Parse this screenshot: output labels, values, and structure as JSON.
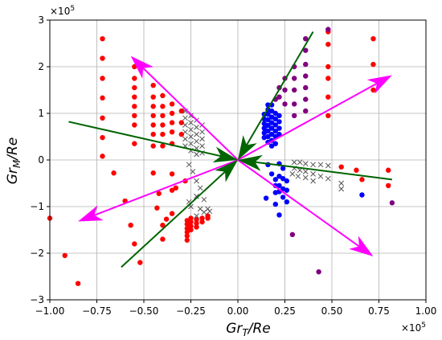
{
  "chart_data": {
    "type": "scatter",
    "title": "",
    "xlabel": "Gr_T/Re",
    "ylabel": "Gr_M/Re",
    "x_multiplier": "×10^5",
    "y_multiplier": "×10^5",
    "xlim": [
      -1.0,
      1.0
    ],
    "ylim": [
      -3,
      3
    ],
    "xticks": [
      -1.0,
      -0.75,
      -0.5,
      -0.25,
      0.0,
      0.25,
      0.5,
      0.75,
      1.0
    ],
    "xtick_labels": [
      "−1.00",
      "−0.75",
      "−0.50",
      "−0.25",
      "0.00",
      "0.25",
      "0.50",
      "0.75",
      "1.00"
    ],
    "yticks": [
      -3,
      -2,
      -1,
      0,
      1,
      2,
      3
    ],
    "ytick_labels": [
      "−3",
      "−2",
      "−1",
      "0",
      "1",
      "2",
      "3"
    ],
    "grid": true,
    "colors": {
      "red": "#ff0000",
      "blue": "#0000ff",
      "purple": "#800080",
      "cross": "#555555",
      "magenta_arrow": "#ff00ff",
      "green_arrow": "#006400"
    },
    "series": [
      {
        "color": "red",
        "marker": "circle",
        "points": [
          [
            -1.0,
            -1.25
          ],
          [
            -0.92,
            -2.05
          ],
          [
            -0.85,
            -2.65
          ],
          [
            -0.72,
            2.6
          ],
          [
            -0.72,
            2.18
          ],
          [
            -0.72,
            1.75
          ],
          [
            -0.72,
            1.33
          ],
          [
            -0.72,
            0.9
          ],
          [
            -0.72,
            0.48
          ],
          [
            -0.72,
            0.08
          ],
          [
            -0.66,
            -0.28
          ],
          [
            -0.6,
            -0.88
          ],
          [
            -0.57,
            -1.4
          ],
          [
            -0.55,
            -1.8
          ],
          [
            -0.52,
            -2.2
          ],
          [
            -0.55,
            2.0
          ],
          [
            -0.55,
            1.75
          ],
          [
            -0.55,
            1.55
          ],
          [
            -0.55,
            1.35
          ],
          [
            -0.55,
            1.15
          ],
          [
            -0.55,
            0.95
          ],
          [
            -0.55,
            0.75
          ],
          [
            -0.55,
            0.35
          ],
          [
            -0.45,
            1.6
          ],
          [
            -0.45,
            1.35
          ],
          [
            -0.45,
            1.15
          ],
          [
            -0.45,
            0.95
          ],
          [
            -0.45,
            0.75
          ],
          [
            -0.45,
            0.55
          ],
          [
            -0.45,
            0.3
          ],
          [
            -0.45,
            -0.28
          ],
          [
            -0.4,
            1.38
          ],
          [
            -0.4,
            1.15
          ],
          [
            -0.4,
            0.95
          ],
          [
            -0.4,
            0.75
          ],
          [
            -0.4,
            0.55
          ],
          [
            -0.4,
            0.3
          ],
          [
            -0.4,
            -1.4
          ],
          [
            -0.4,
            -1.7
          ],
          [
            -0.35,
            1.2
          ],
          [
            -0.35,
            1.0
          ],
          [
            -0.35,
            0.8
          ],
          [
            -0.35,
            0.6
          ],
          [
            -0.35,
            0.35
          ],
          [
            -0.35,
            -0.3
          ],
          [
            -0.35,
            -0.65
          ],
          [
            -0.35,
            -1.15
          ],
          [
            -0.3,
            1.05
          ],
          [
            -0.3,
            0.8
          ],
          [
            -0.3,
            0.55
          ],
          [
            -0.42,
            -0.72
          ],
          [
            -0.33,
            -0.6
          ],
          [
            -0.28,
            -0.45
          ],
          [
            -0.43,
            -1.03
          ],
          [
            -0.38,
            -1.27
          ],
          [
            -0.27,
            -1.3
          ],
          [
            -0.27,
            -1.38
          ],
          [
            -0.27,
            -1.47
          ],
          [
            -0.27,
            -1.55
          ],
          [
            -0.27,
            -1.63
          ],
          [
            -0.27,
            -1.72
          ],
          [
            -0.25,
            -1.25
          ],
          [
            -0.25,
            -1.33
          ],
          [
            -0.25,
            -1.42
          ],
          [
            -0.25,
            -1.5
          ],
          [
            -0.22,
            -1.28
          ],
          [
            -0.22,
            -1.36
          ],
          [
            -0.22,
            -1.44
          ],
          [
            -0.19,
            -1.25
          ],
          [
            -0.19,
            -1.33
          ],
          [
            -0.16,
            -1.25
          ],
          [
            -0.16,
            -1.2
          ],
          [
            0.48,
            2.75
          ],
          [
            0.48,
            2.48
          ],
          [
            0.48,
            2.0
          ],
          [
            0.48,
            1.75
          ],
          [
            0.48,
            1.35
          ],
          [
            0.48,
            0.95
          ],
          [
            0.72,
            2.6
          ],
          [
            0.72,
            2.05
          ],
          [
            0.72,
            1.5
          ],
          [
            0.55,
            -0.15
          ],
          [
            0.63,
            -0.22
          ],
          [
            0.66,
            -0.42
          ],
          [
            0.8,
            -0.22
          ],
          [
            0.8,
            -0.55
          ]
        ]
      },
      {
        "color": "blue",
        "marker": "circle",
        "points": [
          [
            0.14,
            0.48
          ],
          [
            0.14,
            0.58
          ],
          [
            0.14,
            0.68
          ],
          [
            0.14,
            0.78
          ],
          [
            0.14,
            0.88
          ],
          [
            0.14,
            0.98
          ],
          [
            0.16,
            0.38
          ],
          [
            0.16,
            0.5
          ],
          [
            0.16,
            0.62
          ],
          [
            0.16,
            0.74
          ],
          [
            0.16,
            0.86
          ],
          [
            0.16,
            0.98
          ],
          [
            0.16,
            1.08
          ],
          [
            0.16,
            1.18
          ],
          [
            0.18,
            0.3
          ],
          [
            0.18,
            0.42
          ],
          [
            0.18,
            0.55
          ],
          [
            0.18,
            0.68
          ],
          [
            0.18,
            0.8
          ],
          [
            0.18,
            0.92
          ],
          [
            0.18,
            1.05
          ],
          [
            0.18,
            1.18
          ],
          [
            0.2,
            0.35
          ],
          [
            0.2,
            0.5
          ],
          [
            0.2,
            0.62
          ],
          [
            0.2,
            0.75
          ],
          [
            0.2,
            0.88
          ],
          [
            0.2,
            1.0
          ],
          [
            0.22,
            0.55
          ],
          [
            0.22,
            0.68
          ],
          [
            0.22,
            0.82
          ],
          [
            0.22,
            0.95
          ],
          [
            0.16,
            -0.1
          ],
          [
            0.18,
            -0.3
          ],
          [
            0.2,
            -0.42
          ],
          [
            0.2,
            -0.55
          ],
          [
            0.2,
            -0.7
          ],
          [
            0.22,
            -0.08
          ],
          [
            0.22,
            -0.35
          ],
          [
            0.22,
            -0.55
          ],
          [
            0.22,
            -0.68
          ],
          [
            0.24,
            -0.18
          ],
          [
            0.24,
            -0.4
          ],
          [
            0.24,
            -0.62
          ],
          [
            0.24,
            -0.8
          ],
          [
            0.26,
            -0.45
          ],
          [
            0.26,
            -0.65
          ],
          [
            0.26,
            -0.9
          ],
          [
            0.15,
            -0.82
          ],
          [
            0.2,
            -0.95
          ],
          [
            0.22,
            -1.18
          ],
          [
            0.66,
            -0.75
          ]
        ]
      },
      {
        "color": "purple",
        "marker": "circle",
        "points": [
          [
            0.48,
            2.8
          ],
          [
            0.36,
            2.6
          ],
          [
            0.36,
            2.35
          ],
          [
            0.36,
            2.05
          ],
          [
            0.36,
            1.8
          ],
          [
            0.36,
            1.55
          ],
          [
            0.36,
            1.3
          ],
          [
            0.36,
            1.05
          ],
          [
            0.3,
            2.0
          ],
          [
            0.3,
            1.75
          ],
          [
            0.3,
            1.5
          ],
          [
            0.3,
            1.2
          ],
          [
            0.3,
            0.95
          ],
          [
            0.25,
            1.75
          ],
          [
            0.25,
            1.5
          ],
          [
            0.25,
            1.2
          ],
          [
            0.22,
            1.55
          ],
          [
            0.22,
            1.35
          ],
          [
            0.2,
            1.3
          ],
          [
            0.29,
            -1.6
          ],
          [
            0.43,
            -2.4
          ],
          [
            0.82,
            -0.92
          ]
        ]
      },
      {
        "color": "cross",
        "marker": "x",
        "points": [
          [
            -0.28,
            1.05
          ],
          [
            -0.28,
            0.9
          ],
          [
            -0.28,
            0.75
          ],
          [
            -0.28,
            0.6
          ],
          [
            -0.28,
            0.45
          ],
          [
            -0.28,
            0.3
          ],
          [
            -0.25,
            0.95
          ],
          [
            -0.25,
            0.8
          ],
          [
            -0.25,
            0.65
          ],
          [
            -0.25,
            0.5
          ],
          [
            -0.25,
            0.35
          ],
          [
            -0.25,
            0.2
          ],
          [
            -0.22,
            0.85
          ],
          [
            -0.22,
            0.7
          ],
          [
            -0.22,
            0.55
          ],
          [
            -0.22,
            0.4
          ],
          [
            -0.22,
            0.25
          ],
          [
            -0.22,
            0.12
          ],
          [
            -0.19,
            0.75
          ],
          [
            -0.19,
            0.6
          ],
          [
            -0.19,
            0.45
          ],
          [
            -0.19,
            0.3
          ],
          [
            -0.19,
            0.15
          ],
          [
            -0.26,
            -0.1
          ],
          [
            -0.24,
            -0.25
          ],
          [
            -0.22,
            -0.45
          ],
          [
            -0.2,
            -0.6
          ],
          [
            -0.18,
            -0.85
          ],
          [
            -0.22,
            -0.78
          ],
          [
            -0.26,
            -0.9
          ],
          [
            -0.25,
            -1.0
          ],
          [
            -0.2,
            -1.05
          ],
          [
            -0.18,
            -1.12
          ],
          [
            -0.16,
            -1.05
          ],
          [
            -0.15,
            -1.1
          ],
          [
            -0.22,
            -1.2
          ],
          [
            0.3,
            -0.05
          ],
          [
            0.33,
            -0.05
          ],
          [
            0.36,
            -0.08
          ],
          [
            0.4,
            -0.1
          ],
          [
            0.44,
            -0.1
          ],
          [
            0.48,
            -0.12
          ],
          [
            0.3,
            -0.18
          ],
          [
            0.33,
            -0.22
          ],
          [
            0.36,
            -0.25
          ],
          [
            0.4,
            -0.3
          ],
          [
            0.44,
            -0.35
          ],
          [
            0.48,
            -0.4
          ],
          [
            0.55,
            -0.5
          ],
          [
            0.55,
            -0.62
          ],
          [
            0.29,
            -0.3
          ],
          [
            0.32,
            -0.35
          ],
          [
            0.36,
            -0.38
          ],
          [
            0.4,
            -0.45
          ]
        ]
      }
    ],
    "arrows": [
      {
        "color": "magenta_arrow",
        "x1": 0.0,
        "y1": 0.0,
        "x2": 0.82,
        "y2": 1.82
      },
      {
        "color": "magenta_arrow",
        "x1": 0.0,
        "y1": 0.0,
        "x2": -0.57,
        "y2": 2.23
      },
      {
        "color": "magenta_arrow",
        "x1": 0.0,
        "y1": 0.0,
        "x2": -0.85,
        "y2": -1.32
      },
      {
        "color": "magenta_arrow",
        "x1": 0.0,
        "y1": 0.0,
        "x2": 0.72,
        "y2": -2.07
      },
      {
        "color": "green_arrow",
        "x1": 0.4,
        "y1": 2.75,
        "x2": 0.0,
        "y2": 0.0
      },
      {
        "color": "green_arrow",
        "x1": -0.9,
        "y1": 0.82,
        "x2": 0.0,
        "y2": 0.0
      },
      {
        "color": "green_arrow",
        "x1": 0.82,
        "y1": -0.42,
        "x2": 0.0,
        "y2": 0.0
      },
      {
        "color": "green_arrow",
        "x1": -0.62,
        "y1": -2.3,
        "x2": 0.0,
        "y2": 0.0
      }
    ]
  }
}
